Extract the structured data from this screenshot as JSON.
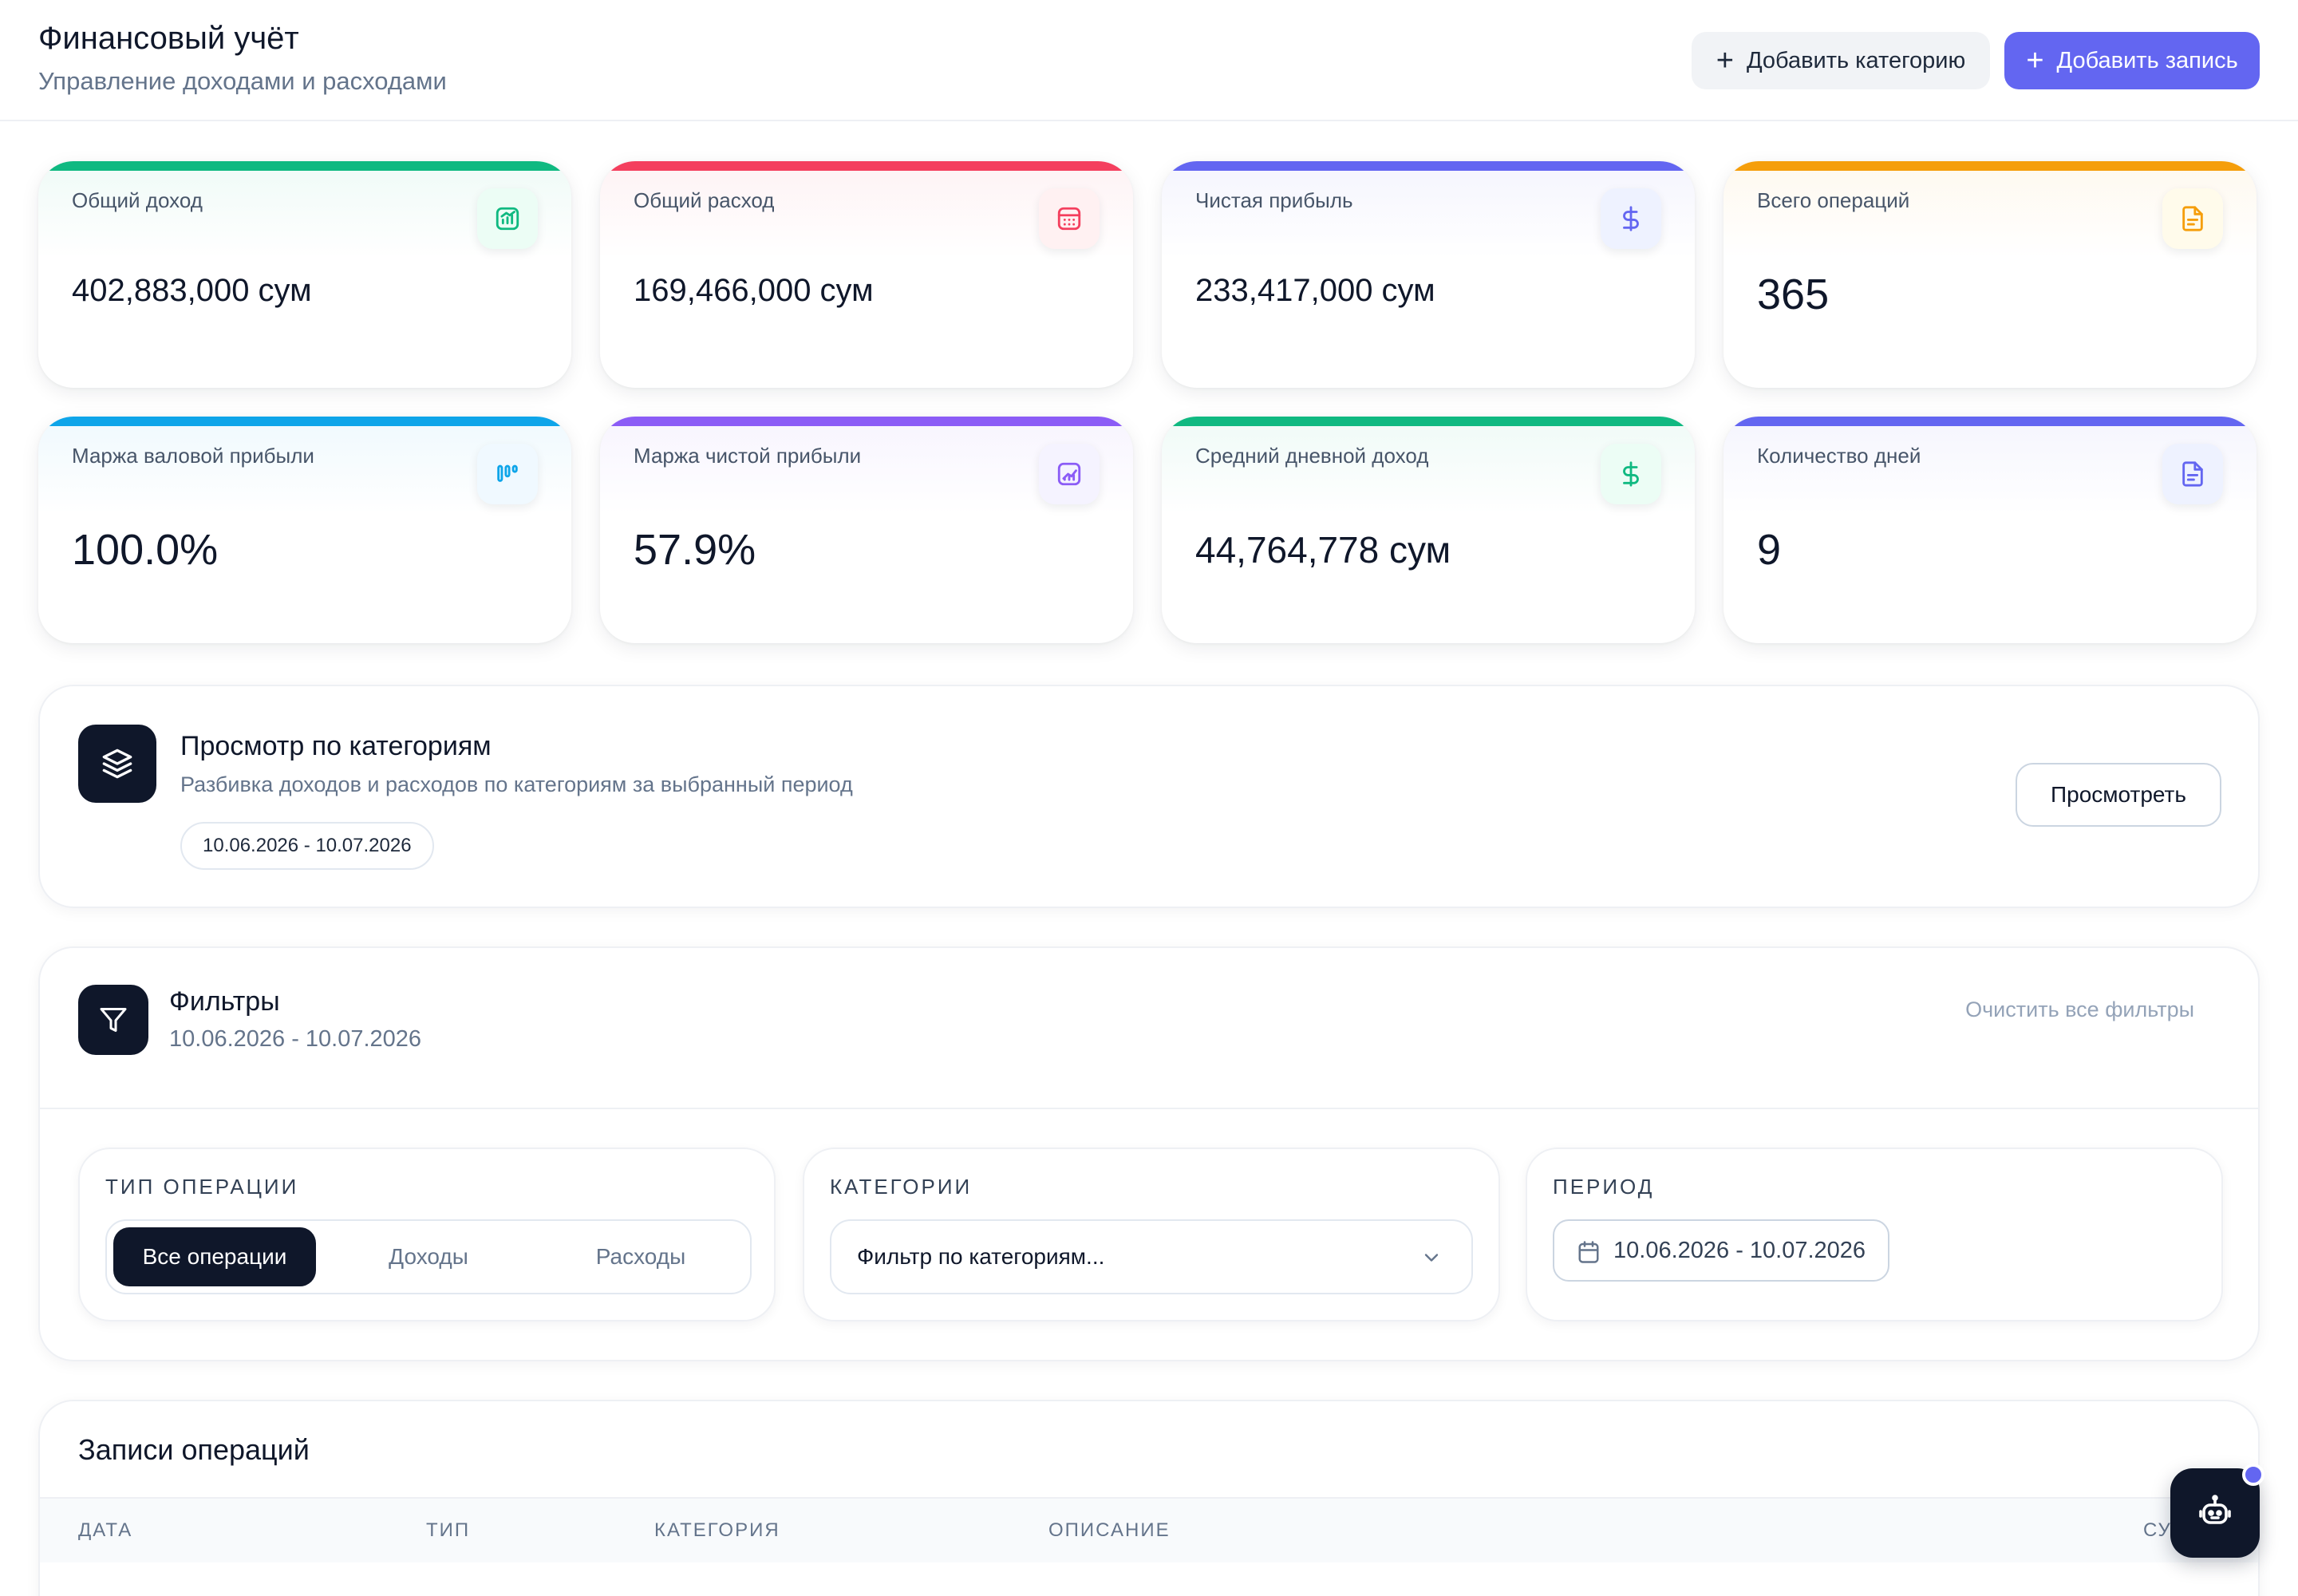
{
  "header": {
    "title": "Финансовый учёт",
    "subtitle": "Управление доходами и расходами",
    "add_category_label": "Добавить категорию",
    "add_record_label": "Добавить запись"
  },
  "stats": [
    {
      "label": "Общий доход",
      "value": "402,883,000 сум",
      "color": "#10b981",
      "icon": "chart-icon"
    },
    {
      "label": "Общий расход",
      "value": "169,466,000 сум",
      "color": "#f43f5e",
      "icon": "calculator-icon"
    },
    {
      "label": "Чистая прибыль",
      "value": "233,417,000 сум",
      "color": "#6366f1",
      "icon": "dollar-icon"
    },
    {
      "label": "Всего операций",
      "value": "365",
      "color": "#f59e0b",
      "icon": "document-icon"
    },
    {
      "label": "Маржа валовой прибыли",
      "value": "100.0%",
      "color": "#0ea5e9",
      "icon": "bars-icon"
    },
    {
      "label": "Маржа чистой прибыли",
      "value": "57.9%",
      "color": "#8b5cf6",
      "icon": "trend-icon"
    },
    {
      "label": "Средний дневной доход",
      "value": "44,764,778 сум",
      "color": "#10b981",
      "icon": "dollar-icon"
    },
    {
      "label": "Количество дней",
      "value": "9",
      "color": "#6366f1",
      "icon": "document-icon"
    }
  ],
  "category_view": {
    "title": "Просмотр по категориям",
    "subtitle": "Разбивка доходов и расходов по категориям за выбранный период",
    "period_chip": "10.06.2026 - 10.07.2026",
    "button_label": "Просмотреть"
  },
  "filters": {
    "title": "Фильтры",
    "period": "10.06.2026 - 10.07.2026",
    "clear_label": "Очистить все фильтры",
    "operation_type": {
      "label": "ТИП ОПЕРАЦИИ",
      "options": [
        "Все операции",
        "Доходы",
        "Расходы"
      ],
      "selected": "Все операции"
    },
    "categories": {
      "label": "КАТЕГОРИИ",
      "placeholder": "Фильтр по категориям..."
    },
    "period_box": {
      "label": "ПЕРИОД",
      "value": "10.06.2026 - 10.07.2026"
    }
  },
  "records": {
    "title": "Записи операций",
    "columns": [
      "ДАТА",
      "ТИП",
      "КАТЕГОРИЯ",
      "ОПИСАНИЕ",
      "СУ"
    ]
  },
  "colors": {
    "accent": "#6366f1",
    "dark": "#0f172a",
    "income": "#10b981",
    "expense": "#f43f5e"
  }
}
